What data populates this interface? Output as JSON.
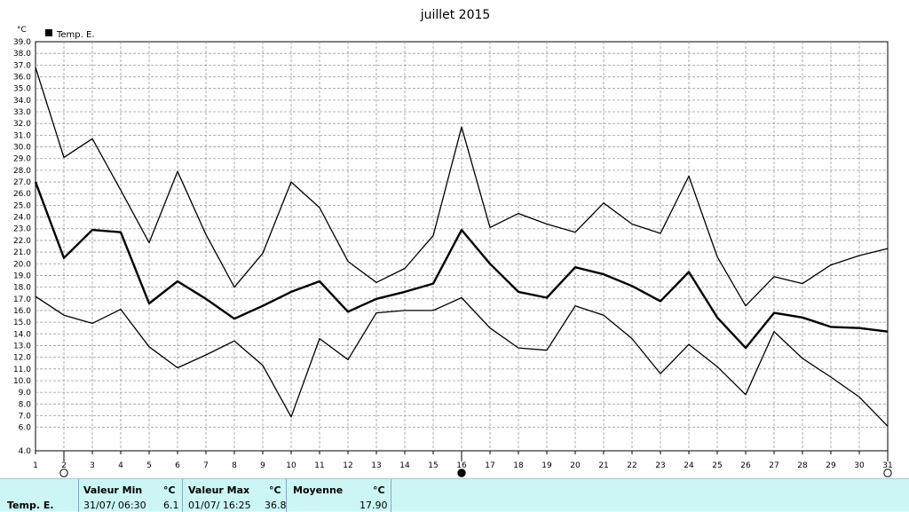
{
  "chart_data": {
    "type": "line",
    "title": "juillet 2015",
    "ylabel": "°C",
    "xlabel": "",
    "legend": "Temp. E.",
    "legend_position": "top-left",
    "grid": true,
    "ylim": [
      4.0,
      39.0
    ],
    "y_ticks": [
      "4.0",
      "6.0",
      "7.0",
      "8.0",
      "9.0",
      "10.0",
      "11.0",
      "12.0",
      "13.0",
      "14.0",
      "15.0",
      "16.0",
      "17.0",
      "18.0",
      "19.0",
      "20.0",
      "21.0",
      "22.0",
      "23.0",
      "24.0",
      "25.0",
      "26.0",
      "27.0",
      "28.0",
      "29.0",
      "30.0",
      "31.0",
      "32.0",
      "33.0",
      "34.0",
      "35.0",
      "36.0",
      "37.0",
      "38.0",
      "39.0"
    ],
    "x": [
      1,
      2,
      3,
      4,
      5,
      6,
      7,
      8,
      9,
      10,
      11,
      12,
      13,
      14,
      15,
      16,
      17,
      18,
      19,
      20,
      21,
      22,
      23,
      24,
      25,
      26,
      27,
      28,
      29,
      30,
      31
    ],
    "series": [
      {
        "values": [
          36.8,
          29.1,
          30.7,
          26.3,
          21.8,
          27.9,
          22.5,
          18.0,
          20.9,
          27.0,
          24.8,
          20.2,
          18.4,
          19.6,
          22.4,
          31.7,
          23.1,
          24.3,
          23.4,
          22.7,
          25.2,
          23.4,
          22.6,
          27.5,
          20.6,
          16.4,
          18.9,
          18.3,
          19.9,
          20.7,
          21.3
        ],
        "color": "#000000",
        "width": 1.3
      },
      {
        "values": [
          27.0,
          20.5,
          22.9,
          22.7,
          16.6,
          18.5,
          17.0,
          15.3,
          16.4,
          17.6,
          18.5,
          15.9,
          17.0,
          17.6,
          18.3,
          22.9,
          20.0,
          17.6,
          17.1,
          19.7,
          19.1,
          18.1,
          16.8,
          19.3,
          15.4,
          12.8,
          15.8,
          15.4,
          14.6,
          14.5,
          14.2
        ],
        "color": "#000000",
        "width": 2.4
      },
      {
        "values": [
          17.2,
          15.6,
          14.9,
          16.1,
          12.9,
          11.1,
          12.2,
          13.4,
          11.3,
          6.9,
          13.6,
          11.8,
          15.8,
          16.0,
          16.0,
          17.1,
          14.5,
          12.8,
          12.6,
          16.4,
          15.6,
          13.6,
          10.6,
          13.1,
          11.2,
          8.8,
          14.2,
          11.9,
          10.3,
          8.6,
          6.1
        ],
        "color": "#000000",
        "width": 1.3
      }
    ],
    "moon_phases": [
      {
        "day": 2,
        "phase": "new"
      },
      {
        "day": 16,
        "phase": "full"
      },
      {
        "day": 31,
        "phase": "new"
      }
    ]
  },
  "stats": {
    "row_label": "Temp. E.",
    "min": {
      "header": "Valeur Min",
      "unit": "°C",
      "datetime": "31/07/  06:30",
      "value": "6.1"
    },
    "max": {
      "header": "Valeur Max",
      "unit": "°C",
      "datetime": "01/07/  16:25",
      "value": "36.8"
    },
    "avg": {
      "header": "Moyenne",
      "unit": "°C",
      "value": "17.90"
    }
  }
}
